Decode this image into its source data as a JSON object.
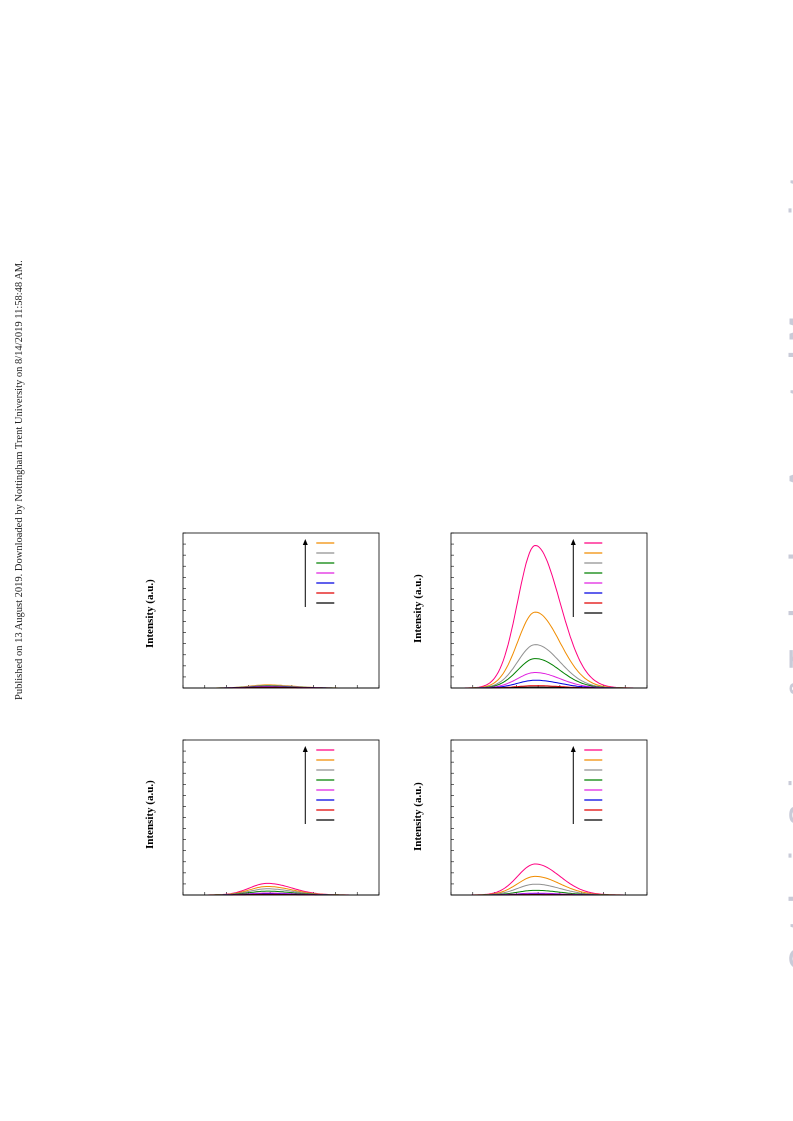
{
  "side_note": "Published on 13 August 2019. Downloaded by Nottingham Trent University on 8/14/2019 11:58:48 AM.",
  "watermark": "Catalysis Science & Technology Accepted Manuscript",
  "chart_data": [
    {
      "type": "line",
      "panel": "top-left",
      "ylabel": "Intensity (a.u.)",
      "legend_colors": [
        "#f08c00",
        "#909090",
        "#008000",
        "#e020e0",
        "#0000e0",
        "#e00000",
        "#000000"
      ],
      "peak_heights": [
        0.02,
        0.016,
        0.012,
        0.009,
        0.006,
        0.004,
        0.002
      ],
      "legend_arrow": "up",
      "grid": false
    },
    {
      "type": "line",
      "panel": "top-right",
      "ylabel": "Intensity (a.u.)",
      "legend_colors": [
        "#ff0080",
        "#f08c00",
        "#909090",
        "#008000",
        "#e020e0",
        "#0000e0",
        "#e00000",
        "#000000"
      ],
      "peak_heights": [
        0.92,
        0.49,
        0.28,
        0.19,
        0.1,
        0.05,
        0.015,
        0.006
      ],
      "legend_arrow": "up",
      "grid": false
    },
    {
      "type": "line",
      "panel": "bottom-left",
      "ylabel": "Intensity (a.u.)",
      "legend_colors": [
        "#ff0080",
        "#f08c00",
        "#909090",
        "#008000",
        "#e020e0",
        "#0000e0",
        "#e00000",
        "#000000"
      ],
      "peak_heights": [
        0.075,
        0.055,
        0.04,
        0.025,
        0.013,
        0.007,
        0.004,
        0.002
      ],
      "legend_arrow": "up",
      "grid": false
    },
    {
      "type": "line",
      "panel": "bottom-right",
      "ylabel": "Intensity (a.u.)",
      "legend_colors": [
        "#ff0080",
        "#f08c00",
        "#909090",
        "#008000",
        "#e020e0",
        "#0000e0",
        "#e00000",
        "#000000"
      ],
      "peak_heights": [
        0.2,
        0.12,
        0.07,
        0.03,
        0.012,
        0.006,
        0.003,
        0.001
      ],
      "legend_arrow": "up",
      "grid": false
    }
  ]
}
